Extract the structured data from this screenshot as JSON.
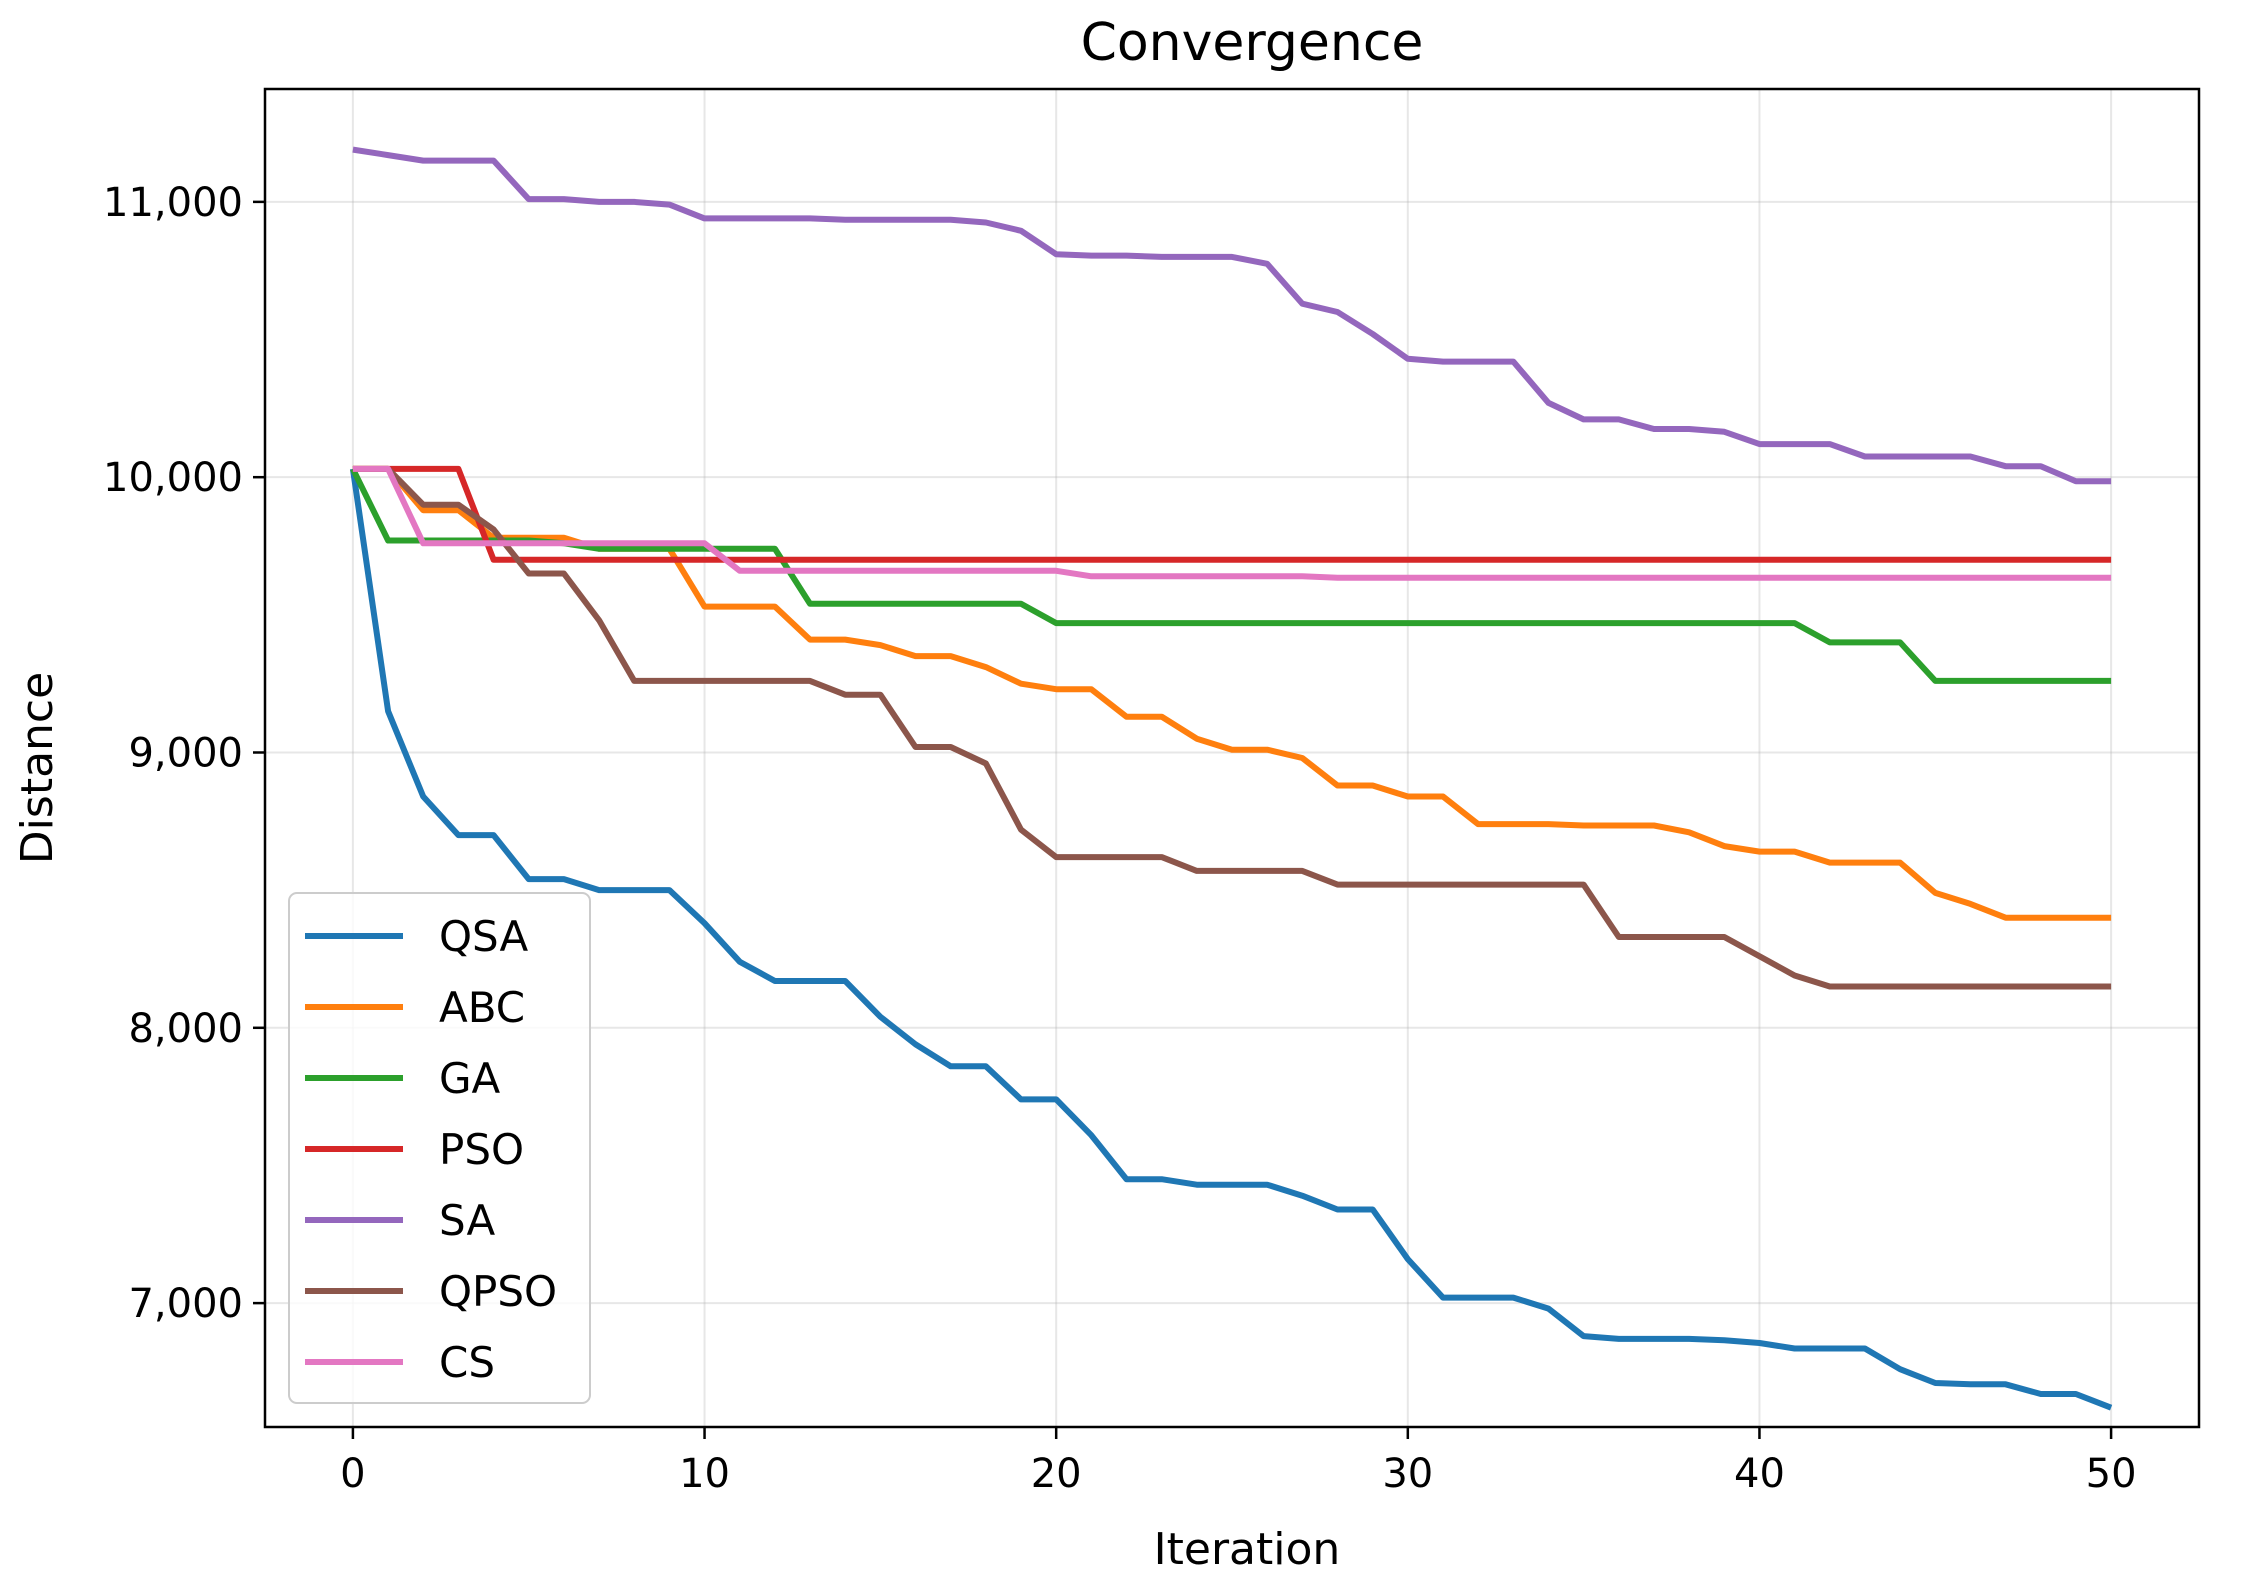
{
  "chart_data": {
    "type": "line",
    "title": "Convergence",
    "xlabel": "Iteration",
    "ylabel": "Distance",
    "xlim": [
      -2.5,
      52.5
    ],
    "ylim": [
      6550,
      11410
    ],
    "grid": true,
    "legend_position": "lower-left",
    "xticks": [
      0,
      10,
      20,
      30,
      40,
      50
    ],
    "xtick_labels": [
      "0",
      "10",
      "20",
      "30",
      "40",
      "50"
    ],
    "yticks": [
      7000,
      8000,
      9000,
      10000,
      11000
    ],
    "ytick_labels": [
      "7,000",
      "8,000",
      "9,000",
      "10,000",
      "11,000"
    ],
    "x": [
      0,
      1,
      2,
      3,
      4,
      5,
      6,
      7,
      8,
      9,
      10,
      11,
      12,
      13,
      14,
      15,
      16,
      17,
      18,
      19,
      20,
      21,
      22,
      23,
      24,
      25,
      26,
      27,
      28,
      29,
      30,
      31,
      32,
      33,
      34,
      35,
      36,
      37,
      38,
      39,
      40,
      41,
      42,
      43,
      44,
      45,
      46,
      47,
      48,
      49,
      50
    ],
    "series": [
      {
        "name": "QSA",
        "color": "#1f77b4",
        "values": [
          10030,
          9150,
          8840,
          8700,
          8700,
          8540,
          8540,
          8500,
          8500,
          8500,
          8380,
          8240,
          8170,
          8170,
          8170,
          8040,
          7940,
          7860,
          7860,
          7740,
          7740,
          7610,
          7450,
          7450,
          7430,
          7430,
          7430,
          7390,
          7340,
          7340,
          7160,
          7020,
          7020,
          7020,
          6980,
          6880,
          6870,
          6870,
          6870,
          6865,
          6855,
          6835,
          6835,
          6835,
          6760,
          6710,
          6705,
          6705,
          6670,
          6670,
          6620
        ]
      },
      {
        "name": "ABC",
        "color": "#ff7f0e",
        "values": [
          10030,
          10030,
          9880,
          9880,
          9780,
          9780,
          9780,
          9740,
          9740,
          9740,
          9530,
          9530,
          9530,
          9410,
          9410,
          9390,
          9350,
          9350,
          9310,
          9250,
          9230,
          9230,
          9130,
          9130,
          9050,
          9010,
          9010,
          8980,
          8880,
          8880,
          8840,
          8840,
          8740,
          8740,
          8740,
          8735,
          8735,
          8735,
          8710,
          8660,
          8640,
          8640,
          8600,
          8600,
          8600,
          8490,
          8450,
          8400,
          8400,
          8400,
          8400
        ]
      },
      {
        "name": "GA",
        "color": "#2ca02c",
        "values": [
          10030,
          9770,
          9770,
          9770,
          9770,
          9770,
          9760,
          9740,
          9740,
          9740,
          9740,
          9740,
          9740,
          9540,
          9540,
          9540,
          9540,
          9540,
          9540,
          9540,
          9470,
          9470,
          9470,
          9470,
          9470,
          9470,
          9470,
          9470,
          9470,
          9470,
          9470,
          9470,
          9470,
          9470,
          9470,
          9470,
          9470,
          9470,
          9470,
          9470,
          9470,
          9470,
          9400,
          9400,
          9400,
          9260,
          9260,
          9260,
          9260,
          9260,
          9260
        ]
      },
      {
        "name": "PSO",
        "color": "#d62728",
        "values": [
          10030,
          10030,
          10030,
          10030,
          9700,
          9700,
          9700,
          9700,
          9700,
          9700,
          9700,
          9700,
          9700,
          9700,
          9700,
          9700,
          9700,
          9700,
          9700,
          9700,
          9700,
          9700,
          9700,
          9700,
          9700,
          9700,
          9700,
          9700,
          9700,
          9700,
          9700,
          9700,
          9700,
          9700,
          9700,
          9700,
          9700,
          9700,
          9700,
          9700,
          9700,
          9700,
          9700,
          9700,
          9700,
          9700,
          9700,
          9700,
          9700,
          9700,
          9700
        ]
      },
      {
        "name": "SA",
        "color": "#9467bd",
        "values": [
          11190,
          11170,
          11150,
          11150,
          11150,
          11010,
          11010,
          11000,
          11000,
          10990,
          10940,
          10940,
          10940,
          10940,
          10935,
          10935,
          10935,
          10935,
          10925,
          10895,
          10810,
          10805,
          10805,
          10800,
          10800,
          10800,
          10775,
          10630,
          10600,
          10520,
          10430,
          10420,
          10420,
          10420,
          10270,
          10210,
          10210,
          10175,
          10175,
          10165,
          10120,
          10120,
          10120,
          10075,
          10075,
          10075,
          10075,
          10040,
          10040,
          9985,
          9985
        ]
      },
      {
        "name": "QPSO",
        "color": "#8c564b",
        "values": [
          10030,
          10030,
          9900,
          9900,
          9810,
          9650,
          9650,
          9480,
          9260,
          9260,
          9260,
          9260,
          9260,
          9260,
          9210,
          9210,
          9020,
          9020,
          8960,
          8720,
          8620,
          8620,
          8620,
          8620,
          8570,
          8570,
          8570,
          8570,
          8520,
          8520,
          8520,
          8520,
          8520,
          8520,
          8520,
          8520,
          8330,
          8330,
          8330,
          8330,
          8260,
          8190,
          8150,
          8150,
          8150,
          8150,
          8150,
          8150,
          8150,
          8150,
          8150
        ]
      },
      {
        "name": "CS",
        "color": "#e377c2",
        "values": [
          10030,
          10030,
          9760,
          9760,
          9760,
          9760,
          9760,
          9760,
          9760,
          9760,
          9760,
          9660,
          9660,
          9660,
          9660,
          9660,
          9660,
          9660,
          9660,
          9660,
          9660,
          9640,
          9640,
          9640,
          9640,
          9640,
          9640,
          9640,
          9635,
          9635,
          9635,
          9635,
          9635,
          9635,
          9635,
          9635,
          9635,
          9635,
          9635,
          9635,
          9635,
          9635,
          9635,
          9635,
          9635,
          9635,
          9635,
          9635,
          9635,
          9635,
          9635
        ]
      }
    ]
  }
}
